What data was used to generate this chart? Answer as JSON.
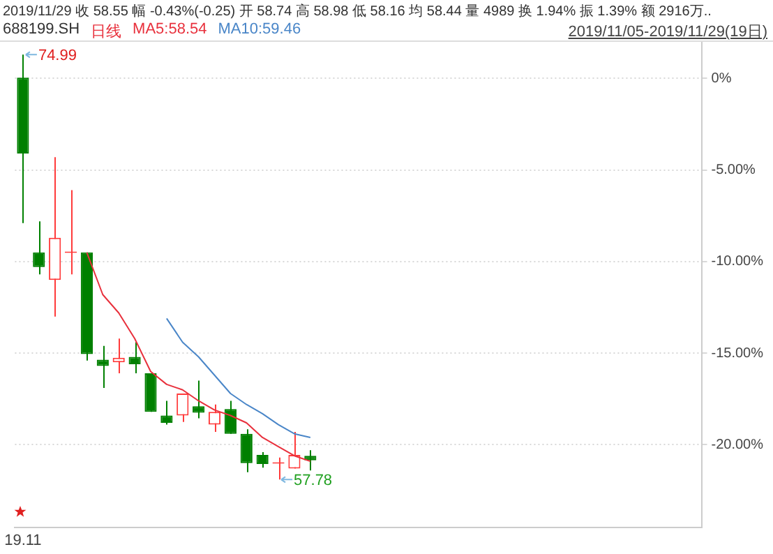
{
  "chart_data": {
    "type": "candlestick",
    "title": "2019/11/29  收 58.55  幅 -0.43%(-0.25)  开 58.74  高 58.98  低 58.16  均 58.44  量 4989  换 1.94%  振 1.39%  额 2916万..",
    "subtitle": "688199.SH",
    "categories": [
      "19.11",
      null,
      null,
      null,
      null,
      null,
      null,
      null,
      null,
      null,
      null,
      null,
      null,
      null,
      null,
      null,
      null,
      null,
      null,
      null,
      null,
      null,
      null,
      null,
      null,
      null,
      null,
      null,
      null,
      null,
      null,
      null,
      null,
      null,
      null,
      null,
      null,
      null,
      null,
      null,
      null,
      null,
      null
    ],
    "ohlc": [
      [
        0.05,
        1.3,
        -7.9,
        -4.1
      ],
      [
        -9.5,
        -7.8,
        -10.7,
        -10.3
      ],
      [
        -11.0,
        -4.3,
        -13.0,
        -8.7
      ],
      [
        -9.5,
        -6.1,
        -10.7,
        -9.45
      ],
      [
        -9.5,
        -9.5,
        -15.4,
        -15.05
      ],
      [
        -15.35,
        -14.6,
        -16.9,
        -15.7
      ],
      [
        -15.5,
        -14.2,
        -16.1,
        -15.25
      ],
      [
        -15.2,
        -14.4,
        -16.1,
        -15.6
      ],
      [
        -16.1,
        -16.1,
        -18.2,
        -18.2
      ],
      [
        -18.4,
        -17.6,
        -18.9,
        -18.8
      ],
      [
        -18.4,
        -17.2,
        -18.75,
        -17.2
      ],
      [
        -17.9,
        -16.5,
        -18.55,
        -18.25
      ],
      [
        -18.9,
        -17.8,
        -19.3,
        -18.2
      ],
      [
        -18.05,
        -17.6,
        -19.4,
        -19.4
      ],
      [
        -19.4,
        -19.15,
        -21.5,
        -21.0
      ],
      [
        -20.55,
        -20.4,
        -21.25,
        -21.05
      ],
      [
        -21.0,
        -20.7,
        -21.9,
        -20.95
      ],
      [
        -21.3,
        -19.3,
        -21.3,
        -20.55
      ],
      [
        -20.6,
        -20.3,
        -21.4,
        -20.85
      ],
      null,
      null,
      null,
      null,
      null,
      null,
      null,
      null,
      null,
      null,
      null,
      null,
      null,
      null,
      null,
      null,
      null,
      null,
      null,
      null,
      null,
      null,
      null,
      null
    ],
    "colors": [
      "#008000",
      "#008000",
      "#ff3b3b",
      "#ff3b3b",
      "#008000",
      "#008000",
      "#ff3b3b",
      "#008000",
      "#008000",
      "#008000",
      "#ff3b3b",
      "#008000",
      "#ff3b3b",
      "#008000",
      "#008000",
      "#008000",
      "#ff3b3b",
      "#ff3b3b",
      "#008000",
      null,
      null,
      null,
      null,
      null,
      null,
      null,
      null,
      null,
      null,
      null,
      null,
      null,
      null,
      null,
      null,
      null,
      null,
      null,
      null,
      null,
      null,
      null,
      null
    ],
    "series": [
      {
        "name": "MA5:58.54",
        "type": "line",
        "color": "#e8303c",
        "values": [
          null,
          null,
          null,
          null,
          -9.5,
          -11.8,
          -12.8,
          -14.2,
          -16.0,
          -16.7,
          -17.0,
          -17.6,
          -18.1,
          -18.4,
          -18.8,
          -19.6,
          -20.1,
          -20.6,
          -20.9,
          null,
          null,
          null,
          null,
          null,
          null,
          null,
          null,
          null,
          null,
          null,
          null,
          null,
          null,
          null,
          null,
          null,
          null,
          null,
          null,
          null,
          null,
          null,
          null
        ]
      },
      {
        "name": "MA10:59.46",
        "type": "line",
        "color": "#4a86c8",
        "values": [
          null,
          null,
          null,
          null,
          null,
          null,
          null,
          null,
          null,
          -13.1,
          -14.4,
          -15.2,
          -16.2,
          -17.2,
          -17.8,
          -18.3,
          -18.9,
          -19.4,
          -19.6,
          null,
          null,
          null,
          null,
          null,
          null,
          null,
          null,
          null,
          null,
          null,
          null,
          null,
          null,
          null,
          null,
          null,
          null,
          null,
          null,
          null,
          null,
          null,
          null
        ]
      }
    ],
    "ylim": [
      -24.5,
      2
    ],
    "yticks": [
      {
        "value": 0,
        "label": "0%"
      },
      {
        "value": -5,
        "label": "-5.00%"
      },
      {
        "value": -10,
        "label": "-10.00%"
      },
      {
        "value": -15,
        "label": "-15.00%"
      },
      {
        "value": -20,
        "label": "-20.00%"
      }
    ],
    "grid": "y",
    "legend": "top left",
    "marker": "none",
    "line_style": "solid",
    "annotations": [
      "日线",
      "2019/11/05-2019/11/29(19日)",
      "74.99",
      "57.78"
    ]
  }
}
